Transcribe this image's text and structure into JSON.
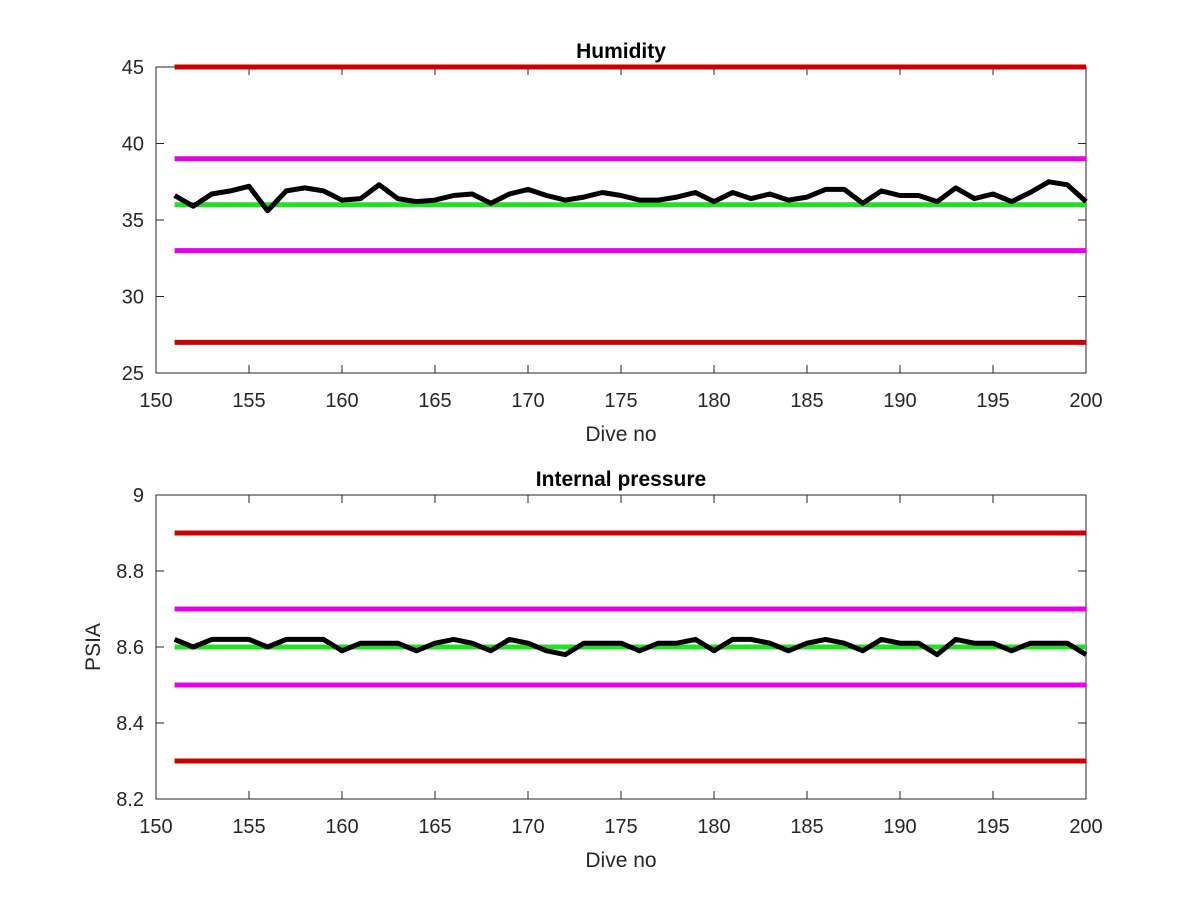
{
  "chart_data": [
    {
      "type": "line",
      "title": "Humidity",
      "xlabel": "Dive no",
      "ylabel": "",
      "xlim": [
        150,
        200
      ],
      "ylim": [
        25,
        45
      ],
      "xticks": [
        "150",
        "155",
        "160",
        "165",
        "170",
        "175",
        "180",
        "185",
        "190",
        "195",
        "200"
      ],
      "yticks": [
        "25",
        "30",
        "35",
        "40",
        "45"
      ],
      "grid": false,
      "x": [
        151,
        152,
        153,
        154,
        155,
        156,
        157,
        158,
        159,
        160,
        161,
        162,
        163,
        164,
        165,
        166,
        167,
        168,
        169,
        170,
        171,
        172,
        173,
        174,
        175,
        176,
        177,
        178,
        179,
        180,
        181,
        182,
        183,
        184,
        185,
        186,
        187,
        188,
        189,
        190,
        191,
        192,
        193,
        194,
        195,
        196,
        197,
        198,
        199,
        200
      ],
      "series": [
        {
          "color": "#000000",
          "values": [
            36.6,
            35.9,
            36.7,
            36.9,
            37.2,
            35.6,
            36.9,
            37.1,
            36.9,
            36.3,
            36.4,
            37.3,
            36.4,
            36.2,
            36.3,
            36.6,
            36.7,
            36.1,
            36.7,
            37.0,
            36.6,
            36.3,
            36.5,
            36.8,
            36.6,
            36.3,
            36.3,
            36.5,
            36.8,
            36.2,
            36.8,
            36.4,
            36.7,
            36.3,
            36.5,
            37.0,
            37.0,
            36.1,
            36.9,
            36.6,
            36.6,
            36.2,
            37.1,
            36.4,
            36.7,
            36.2,
            36.8,
            37.5,
            37.3,
            36.2
          ]
        },
        {
          "color": "#cc0000",
          "values": [
            45,
            45,
            45,
            45,
            45,
            45,
            45,
            45,
            45,
            45,
            45,
            45,
            45,
            45,
            45,
            45,
            45,
            45,
            45,
            45,
            45,
            45,
            45,
            45,
            45,
            45,
            45,
            45,
            45,
            45,
            45,
            45,
            45,
            45,
            45,
            45,
            45,
            45,
            45,
            45,
            45,
            45,
            45,
            45,
            45,
            45,
            45,
            45,
            45,
            45
          ]
        },
        {
          "color": "#e800e8",
          "values": [
            39,
            39,
            39,
            39,
            39,
            39,
            39,
            39,
            39,
            39,
            39,
            39,
            39,
            39,
            39,
            39,
            39,
            39,
            39,
            39,
            39,
            39,
            39,
            39,
            39,
            39,
            39,
            39,
            39,
            39,
            39,
            39,
            39,
            39,
            39,
            39,
            39,
            39,
            39,
            39,
            39,
            39,
            39,
            39,
            39,
            39,
            39,
            39,
            39,
            39
          ]
        },
        {
          "color": "#22e022",
          "values": [
            36,
            36,
            36,
            36,
            36,
            36,
            36,
            36,
            36,
            36,
            36,
            36,
            36,
            36,
            36,
            36,
            36,
            36,
            36,
            36,
            36,
            36,
            36,
            36,
            36,
            36,
            36,
            36,
            36,
            36,
            36,
            36,
            36,
            36,
            36,
            36,
            36,
            36,
            36,
            36,
            36,
            36,
            36,
            36,
            36,
            36,
            36,
            36,
            36,
            36
          ]
        },
        {
          "color": "#e800e8",
          "values": [
            33,
            33,
            33,
            33,
            33,
            33,
            33,
            33,
            33,
            33,
            33,
            33,
            33,
            33,
            33,
            33,
            33,
            33,
            33,
            33,
            33,
            33,
            33,
            33,
            33,
            33,
            33,
            33,
            33,
            33,
            33,
            33,
            33,
            33,
            33,
            33,
            33,
            33,
            33,
            33,
            33,
            33,
            33,
            33,
            33,
            33,
            33,
            33,
            33,
            33
          ]
        },
        {
          "color": "#cc0000",
          "values": [
            27,
            27,
            27,
            27,
            27,
            27,
            27,
            27,
            27,
            27,
            27,
            27,
            27,
            27,
            27,
            27,
            27,
            27,
            27,
            27,
            27,
            27,
            27,
            27,
            27,
            27,
            27,
            27,
            27,
            27,
            27,
            27,
            27,
            27,
            27,
            27,
            27,
            27,
            27,
            27,
            27,
            27,
            27,
            27,
            27,
            27,
            27,
            27,
            27,
            27
          ]
        }
      ]
    },
    {
      "type": "line",
      "title": "Internal pressure",
      "xlabel": "Dive no",
      "ylabel": "PSIA",
      "xlim": [
        150,
        200
      ],
      "ylim": [
        8.2,
        9
      ],
      "xticks": [
        "150",
        "155",
        "160",
        "165",
        "170",
        "175",
        "180",
        "185",
        "190",
        "195",
        "200"
      ],
      "yticks": [
        "8.2",
        "8.4",
        "8.6",
        "8.8",
        "9"
      ],
      "grid": false,
      "x": [
        151,
        152,
        153,
        154,
        155,
        156,
        157,
        158,
        159,
        160,
        161,
        162,
        163,
        164,
        165,
        166,
        167,
        168,
        169,
        170,
        171,
        172,
        173,
        174,
        175,
        176,
        177,
        178,
        179,
        180,
        181,
        182,
        183,
        184,
        185,
        186,
        187,
        188,
        189,
        190,
        191,
        192,
        193,
        194,
        195,
        196,
        197,
        198,
        199,
        200
      ],
      "series": [
        {
          "color": "#000000",
          "values": [
            8.62,
            8.6,
            8.62,
            8.62,
            8.62,
            8.6,
            8.62,
            8.62,
            8.62,
            8.59,
            8.61,
            8.61,
            8.61,
            8.59,
            8.61,
            8.62,
            8.61,
            8.59,
            8.62,
            8.61,
            8.59,
            8.58,
            8.61,
            8.61,
            8.61,
            8.59,
            8.61,
            8.61,
            8.62,
            8.59,
            8.62,
            8.62,
            8.61,
            8.59,
            8.61,
            8.62,
            8.61,
            8.59,
            8.62,
            8.61,
            8.61,
            8.58,
            8.62,
            8.61,
            8.61,
            8.59,
            8.61,
            8.61,
            8.61,
            8.58
          ]
        },
        {
          "color": "#cc0000",
          "values": [
            8.9,
            8.9,
            8.9,
            8.9,
            8.9,
            8.9,
            8.9,
            8.9,
            8.9,
            8.9,
            8.9,
            8.9,
            8.9,
            8.9,
            8.9,
            8.9,
            8.9,
            8.9,
            8.9,
            8.9,
            8.9,
            8.9,
            8.9,
            8.9,
            8.9,
            8.9,
            8.9,
            8.9,
            8.9,
            8.9,
            8.9,
            8.9,
            8.9,
            8.9,
            8.9,
            8.9,
            8.9,
            8.9,
            8.9,
            8.9,
            8.9,
            8.9,
            8.9,
            8.9,
            8.9,
            8.9,
            8.9,
            8.9,
            8.9,
            8.9
          ]
        },
        {
          "color": "#e800e8",
          "values": [
            8.7,
            8.7,
            8.7,
            8.7,
            8.7,
            8.7,
            8.7,
            8.7,
            8.7,
            8.7,
            8.7,
            8.7,
            8.7,
            8.7,
            8.7,
            8.7,
            8.7,
            8.7,
            8.7,
            8.7,
            8.7,
            8.7,
            8.7,
            8.7,
            8.7,
            8.7,
            8.7,
            8.7,
            8.7,
            8.7,
            8.7,
            8.7,
            8.7,
            8.7,
            8.7,
            8.7,
            8.7,
            8.7,
            8.7,
            8.7,
            8.7,
            8.7,
            8.7,
            8.7,
            8.7,
            8.7,
            8.7,
            8.7,
            8.7,
            8.7
          ]
        },
        {
          "color": "#22e022",
          "values": [
            8.6,
            8.6,
            8.6,
            8.6,
            8.6,
            8.6,
            8.6,
            8.6,
            8.6,
            8.6,
            8.6,
            8.6,
            8.6,
            8.6,
            8.6,
            8.6,
            8.6,
            8.6,
            8.6,
            8.6,
            8.6,
            8.6,
            8.6,
            8.6,
            8.6,
            8.6,
            8.6,
            8.6,
            8.6,
            8.6,
            8.6,
            8.6,
            8.6,
            8.6,
            8.6,
            8.6,
            8.6,
            8.6,
            8.6,
            8.6,
            8.6,
            8.6,
            8.6,
            8.6,
            8.6,
            8.6,
            8.6,
            8.6,
            8.6,
            8.6
          ]
        },
        {
          "color": "#e800e8",
          "values": [
            8.5,
            8.5,
            8.5,
            8.5,
            8.5,
            8.5,
            8.5,
            8.5,
            8.5,
            8.5,
            8.5,
            8.5,
            8.5,
            8.5,
            8.5,
            8.5,
            8.5,
            8.5,
            8.5,
            8.5,
            8.5,
            8.5,
            8.5,
            8.5,
            8.5,
            8.5,
            8.5,
            8.5,
            8.5,
            8.5,
            8.5,
            8.5,
            8.5,
            8.5,
            8.5,
            8.5,
            8.5,
            8.5,
            8.5,
            8.5,
            8.5,
            8.5,
            8.5,
            8.5,
            8.5,
            8.5,
            8.5,
            8.5,
            8.5,
            8.5
          ]
        },
        {
          "color": "#cc0000",
          "values": [
            8.3,
            8.3,
            8.3,
            8.3,
            8.3,
            8.3,
            8.3,
            8.3,
            8.3,
            8.3,
            8.3,
            8.3,
            8.3,
            8.3,
            8.3,
            8.3,
            8.3,
            8.3,
            8.3,
            8.3,
            8.3,
            8.3,
            8.3,
            8.3,
            8.3,
            8.3,
            8.3,
            8.3,
            8.3,
            8.3,
            8.3,
            8.3,
            8.3,
            8.3,
            8.3,
            8.3,
            8.3,
            8.3,
            8.3,
            8.3,
            8.3,
            8.3,
            8.3,
            8.3,
            8.3,
            8.3,
            8.3,
            8.3,
            8.3,
            8.3
          ]
        }
      ]
    }
  ]
}
